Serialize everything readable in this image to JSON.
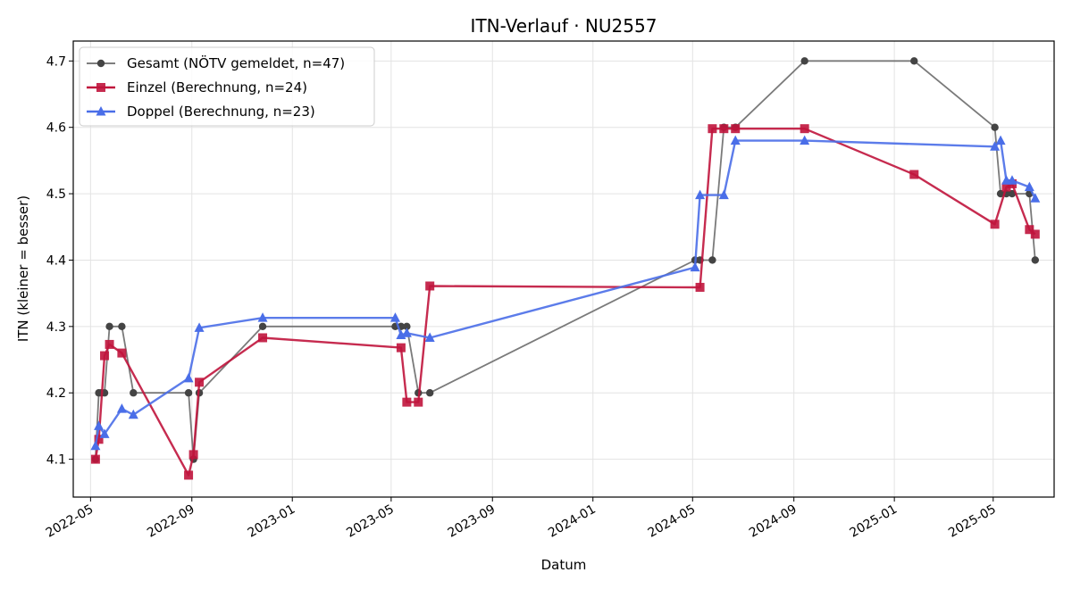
{
  "chart_data": {
    "type": "line",
    "title": "ITN-Verlauf · NU2557",
    "xlabel": "Datum",
    "ylabel": "ITN  (kleiner = besser)",
    "x_type": "date",
    "xlim": [
      "2022-04-10",
      "2025-07-14"
    ],
    "ylim": [
      4.043,
      4.73
    ],
    "x_ticks": [
      "2022-05",
      "2022-09",
      "2023-01",
      "2023-05",
      "2023-09",
      "2024-01",
      "2024-05",
      "2024-09",
      "2025-01",
      "2025-05"
    ],
    "y_ticks": [
      4.1,
      4.2,
      4.3,
      4.4,
      4.5,
      4.6,
      4.7
    ],
    "grid": true,
    "legend_position": "top-left",
    "series": [
      {
        "name": "Gesamt (NÖTV gemeldet, n=47)",
        "color": "#6b6b6b",
        "marker_color": "#444444",
        "marker": "circle",
        "points": [
          [
            "2022-05-07",
            4.1
          ],
          [
            "2022-05-11",
            4.2
          ],
          [
            "2022-05-14",
            4.2
          ],
          [
            "2022-05-18",
            4.2
          ],
          [
            "2022-05-24",
            4.3
          ],
          [
            "2022-06-08",
            4.3
          ],
          [
            "2022-06-22",
            4.2
          ],
          [
            "2022-08-28",
            4.2
          ],
          [
            "2022-09-03",
            4.1
          ],
          [
            "2022-09-10",
            4.2
          ],
          [
            "2022-11-26",
            4.3
          ],
          [
            "2023-05-06",
            4.3
          ],
          [
            "2023-05-13",
            4.3
          ],
          [
            "2023-05-20",
            4.3
          ],
          [
            "2023-06-03",
            4.2
          ],
          [
            "2023-06-17",
            4.2
          ],
          [
            "2024-05-04",
            4.4
          ],
          [
            "2024-05-10",
            4.4
          ],
          [
            "2024-05-25",
            4.4
          ],
          [
            "2024-06-08",
            4.6
          ],
          [
            "2024-06-22",
            4.6
          ],
          [
            "2024-09-14",
            4.7
          ],
          [
            "2025-01-25",
            4.7
          ],
          [
            "2025-05-03",
            4.6
          ],
          [
            "2025-05-10",
            4.5
          ],
          [
            "2025-05-17",
            4.5
          ],
          [
            "2025-05-24",
            4.5
          ],
          [
            "2025-06-14",
            4.5
          ],
          [
            "2025-06-21",
            4.4
          ]
        ]
      },
      {
        "name": "Einzel (Berechnung, n=24)",
        "color": "#c0143c",
        "marker": "square",
        "points": [
          [
            "2022-05-07",
            4.1
          ],
          [
            "2022-05-11",
            4.13
          ],
          [
            "2022-05-18",
            4.256
          ],
          [
            "2022-05-24",
            4.273
          ],
          [
            "2022-06-08",
            4.26
          ],
          [
            "2022-08-28",
            4.076
          ],
          [
            "2022-09-03",
            4.107
          ],
          [
            "2022-09-10",
            4.216
          ],
          [
            "2022-11-26",
            4.283
          ],
          [
            "2023-05-13",
            4.268
          ],
          [
            "2023-05-20",
            4.186
          ],
          [
            "2023-06-03",
            4.186
          ],
          [
            "2023-06-17",
            4.361
          ],
          [
            "2024-05-10",
            4.359
          ],
          [
            "2024-05-25",
            4.598
          ],
          [
            "2024-06-08",
            4.598
          ],
          [
            "2024-06-22",
            4.598
          ],
          [
            "2024-09-14",
            4.598
          ],
          [
            "2025-01-25",
            4.529
          ],
          [
            "2025-05-03",
            4.454
          ],
          [
            "2025-05-17",
            4.51
          ],
          [
            "2025-05-24",
            4.515
          ],
          [
            "2025-06-14",
            4.446
          ],
          [
            "2025-06-21",
            4.439
          ]
        ]
      },
      {
        "name": "Doppel (Berechnung, n=23)",
        "color": "#4a6ee8",
        "marker": "triangle",
        "points": [
          [
            "2022-05-07",
            4.12
          ],
          [
            "2022-05-11",
            4.15
          ],
          [
            "2022-05-18",
            4.138
          ],
          [
            "2022-06-08",
            4.176
          ],
          [
            "2022-06-22",
            4.167
          ],
          [
            "2022-08-28",
            4.222
          ],
          [
            "2022-09-10",
            4.298
          ],
          [
            "2022-11-26",
            4.313
          ],
          [
            "2023-05-06",
            4.313
          ],
          [
            "2023-05-13",
            4.287
          ],
          [
            "2023-05-20",
            4.29
          ],
          [
            "2023-06-17",
            4.283
          ],
          [
            "2024-05-04",
            4.389
          ],
          [
            "2024-05-10",
            4.498
          ],
          [
            "2024-06-08",
            4.498
          ],
          [
            "2024-06-22",
            4.58
          ],
          [
            "2024-09-14",
            4.58
          ],
          [
            "2025-05-03",
            4.571
          ],
          [
            "2025-05-10",
            4.58
          ],
          [
            "2025-05-17",
            4.52
          ],
          [
            "2025-05-24",
            4.52
          ],
          [
            "2025-06-14",
            4.51
          ],
          [
            "2025-06-21",
            4.493
          ]
        ]
      }
    ]
  }
}
